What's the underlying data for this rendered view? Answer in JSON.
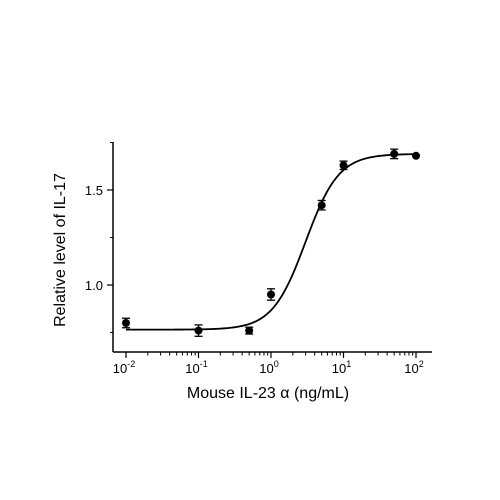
{
  "chart_data": {
    "type": "scatter",
    "title": "",
    "xlabel": "Mouse IL-23 α (ng/mL)",
    "ylabel": "Relative level of IL-17",
    "x_scale": "log",
    "xlim": [
      0.01,
      100
    ],
    "ylim": [
      0.68,
      1.74
    ],
    "x_ticks": [
      {
        "value": 0.01,
        "base": "10",
        "exp": "-2"
      },
      {
        "value": 0.1,
        "base": "10",
        "exp": "-1"
      },
      {
        "value": 1,
        "base": "10",
        "exp": "0"
      },
      {
        "value": 10,
        "base": "10",
        "exp": "1"
      },
      {
        "value": 100,
        "base": "10",
        "exp": "2"
      }
    ],
    "y_ticks": [
      {
        "value": 1.0,
        "label": "1.0"
      },
      {
        "value": 1.5,
        "label": "1.5"
      }
    ],
    "grid": false,
    "legend": "none",
    "series": [
      {
        "marker": "circle",
        "color": "#000000",
        "points": [
          {
            "x": 0.01,
            "y": 0.8,
            "err": 0.025
          },
          {
            "x": 0.1,
            "y": 0.76,
            "err": 0.03
          },
          {
            "x": 0.5,
            "y": 0.76,
            "err": 0.018
          },
          {
            "x": 1.0,
            "y": 0.95,
            "err": 0.03
          },
          {
            "x": 5.0,
            "y": 1.42,
            "err": 0.025
          },
          {
            "x": 10.0,
            "y": 1.63,
            "err": 0.022
          },
          {
            "x": 50.0,
            "y": 1.69,
            "err": 0.025
          },
          {
            "x": 100.0,
            "y": 1.68,
            "err": 0.0
          }
        ]
      }
    ],
    "fit_curve": {
      "model": "4PL",
      "bottom": 0.765,
      "top": 1.69,
      "ec50": 3.0,
      "hill": 1.9,
      "x_range": [
        0.01,
        100
      ],
      "color": "#000000"
    }
  }
}
